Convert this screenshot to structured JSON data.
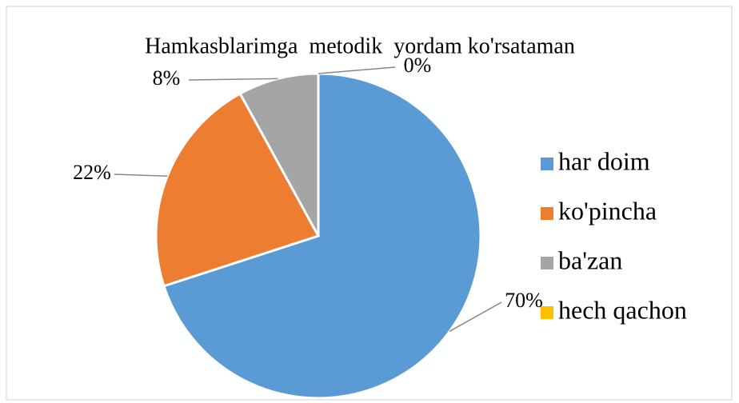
{
  "chart_data": {
    "type": "pie",
    "title": "Hamkasblarimga  metodik  yordam ko'rsataman",
    "categories": [
      "har doim",
      "ko'pincha",
      "ba'zan",
      "hech qachon"
    ],
    "values": [
      70,
      22,
      8,
      0
    ],
    "value_labels": [
      "70%",
      "22%",
      "8%",
      "0%"
    ],
    "colors": [
      "#5b9bd5",
      "#ed7d31",
      "#a5a5a5",
      "#ffc000"
    ],
    "legend": "right"
  }
}
